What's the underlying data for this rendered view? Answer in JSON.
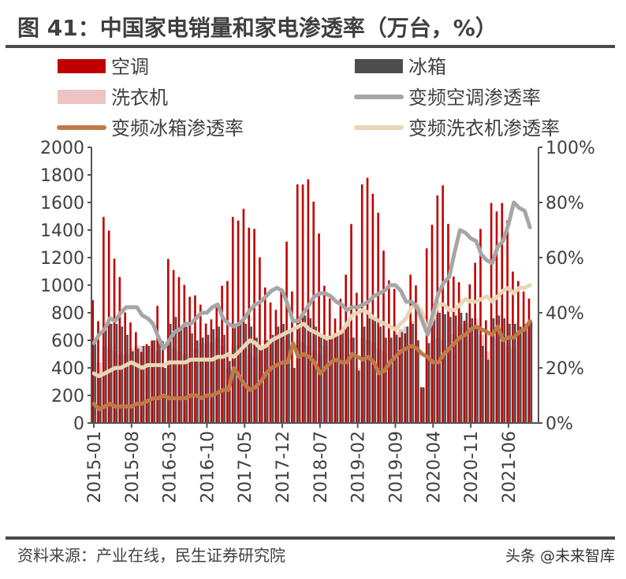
{
  "title": "图 41：中国家电销量和家电渗透率（万台，%）",
  "source": "资料来源：产业在线，民生证券研究院",
  "watermark": "头条 @未来智库",
  "colors": {
    "ac": "#c00000",
    "fridge": "#4d4d4f",
    "washer": "#eec3c4",
    "ac_pen": "#a6a6a6",
    "fridge_pen": "#c07a47",
    "washer_pen": "#e8d6b5",
    "axis": "#555555"
  },
  "chart_data": {
    "type": "bar+line",
    "legend_placement": "top",
    "x_start": "2015-01",
    "x_end": "2021-10",
    "x_tick_labels": [
      "2015-01",
      "2015-08",
      "2016-03",
      "2016-10",
      "2017-05",
      "2017-12",
      "2018-07",
      "2019-02",
      "2019-09",
      "2020-04",
      "2020-11",
      "2021-06"
    ],
    "y_left": {
      "min": 0,
      "max": 2000,
      "ticks": [
        "0",
        "200",
        "400",
        "600",
        "800",
        "1000",
        "1200",
        "1400",
        "1600",
        "1800",
        "2000"
      ]
    },
    "y_right": {
      "min": 0,
      "max": 100,
      "ticks": [
        "0%",
        "20%",
        "40%",
        "60%",
        "80%",
        "100%"
      ]
    },
    "grid": false,
    "series": [
      {
        "name": "空调",
        "kind": "bar",
        "axis": "left",
        "values": [
          891,
          739,
          1495,
          1396,
          1192,
          1059,
          802,
          730,
          659,
          516,
          573,
          598,
          850,
          593,
          1190,
          1110,
          1059,
          1002,
          916,
          926,
          859,
          722,
          752,
          855,
          996,
          1030,
          1495,
          1469,
          1554,
          1417,
          1408,
          1202,
          983,
          874,
          821,
          958,
          1316,
          954,
          1731,
          1730,
          1768,
          1606,
          1375,
          996,
          903,
          758,
          901,
          1076,
          1444,
          945,
          1731,
          1779,
          1663,
          1526,
          1251,
          1034,
          973,
          621,
          650,
          1076,
          998,
          260,
          1267,
          1438,
          1651,
          1724,
          1444,
          1063,
          1021,
          742,
          1006,
          1162,
          1408,
          745,
          1596,
          1535,
          1596,
          1470,
          1099,
          1030,
          954,
          902
        ]
      },
      {
        "name": "冰箱",
        "kind": "bar",
        "axis": "left",
        "values": [
          600,
          350,
          700,
          720,
          720,
          700,
          640,
          520,
          540,
          560,
          560,
          600,
          580,
          400,
          720,
          770,
          700,
          700,
          650,
          600,
          620,
          640,
          680,
          700,
          640,
          450,
          720,
          740,
          720,
          700,
          620,
          560,
          600,
          640,
          700,
          720,
          650,
          400,
          760,
          780,
          760,
          700,
          620,
          600,
          640,
          650,
          680,
          700,
          620,
          380,
          700,
          760,
          740,
          700,
          620,
          620,
          640,
          660,
          700,
          720,
          600,
          260,
          580,
          780,
          800,
          790,
          770,
          780,
          800,
          800,
          760,
          700,
          560,
          460,
          760,
          780,
          760,
          720,
          720,
          700,
          720,
          740
        ]
      },
      {
        "name": "洗衣机",
        "kind": "bar",
        "axis": "left",
        "values": [
          560,
          440,
          560,
          550,
          520,
          500,
          500,
          540,
          560,
          560,
          560,
          600,
          520,
          400,
          560,
          540,
          520,
          500,
          480,
          540,
          580,
          580,
          590,
          620,
          560,
          400,
          560,
          560,
          540,
          500,
          480,
          560,
          600,
          620,
          640,
          700,
          600,
          400,
          600,
          580,
          560,
          520,
          500,
          560,
          620,
          640,
          660,
          720,
          620,
          400,
          620,
          600,
          580,
          540,
          520,
          600,
          660,
          680,
          700,
          740,
          560,
          240,
          520,
          600,
          620,
          600,
          560,
          640,
          700,
          720,
          720,
          760,
          640,
          520,
          640,
          620,
          600,
          560,
          540,
          640,
          700,
          720
        ]
      },
      {
        "name": "变频空调渗透率",
        "kind": "line",
        "axis": "right",
        "values": [
          29,
          32,
          34,
          38,
          37,
          40,
          42,
          42,
          42,
          39,
          38,
          36,
          31,
          27,
          30,
          33,
          34,
          36,
          36,
          38,
          40,
          40,
          42,
          43,
          38,
          36,
          35,
          36,
          38,
          41,
          43,
          44,
          46,
          48,
          49,
          48,
          43,
          37,
          37,
          40,
          43,
          46,
          47,
          47,
          46,
          44,
          43,
          41,
          42,
          42,
          43,
          44,
          46,
          47,
          48,
          50,
          50,
          48,
          44,
          44,
          42,
          37,
          32,
          40,
          47,
          51,
          53,
          62,
          70,
          69,
          67,
          66,
          61,
          59,
          58,
          64,
          66,
          72,
          80,
          78,
          77,
          71
        ]
      },
      {
        "name": "变频冰箱渗透率",
        "kind": "line",
        "axis": "right",
        "values": [
          7,
          5,
          6,
          7,
          6,
          6,
          6,
          6,
          7,
          7,
          8,
          9,
          9,
          10,
          9,
          9,
          9,
          9,
          10,
          10,
          9,
          10,
          10,
          11,
          12,
          12,
          20,
          17,
          14,
          12,
          13,
          15,
          18,
          20,
          21,
          22,
          22,
          29,
          24,
          25,
          24,
          22,
          18,
          20,
          22,
          23,
          22,
          22,
          25,
          24,
          23,
          24,
          22,
          18,
          19,
          22,
          24,
          26,
          27,
          28,
          27,
          25,
          24,
          22,
          22,
          25,
          27,
          29,
          31,
          32,
          34,
          35,
          34,
          33,
          32,
          35,
          30,
          31,
          31,
          33,
          34,
          37
        ]
      },
      {
        "name": "变频洗衣机渗透率",
        "kind": "line",
        "axis": "right",
        "values": [
          18,
          17,
          18,
          19,
          20,
          20,
          21,
          22,
          21,
          20,
          21,
          21,
          21,
          21,
          22,
          22,
          22,
          22,
          23,
          23,
          23,
          23,
          23,
          24,
          24,
          25,
          24,
          26,
          28,
          30,
          29,
          27,
          28,
          30,
          31,
          32,
          33,
          34,
          35,
          36,
          34,
          33,
          32,
          31,
          31,
          32,
          33,
          36,
          39,
          40,
          41,
          40,
          38,
          37,
          36,
          35,
          34,
          36,
          38,
          42,
          43,
          40,
          33,
          38,
          43,
          43,
          41,
          41,
          43,
          45,
          44,
          44,
          45,
          46,
          44,
          46,
          48,
          49,
          47,
          49,
          49,
          50
        ]
      }
    ]
  }
}
